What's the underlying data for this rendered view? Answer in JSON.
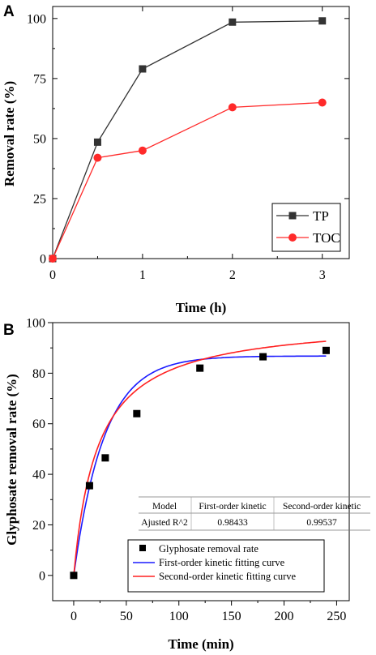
{
  "panels": {
    "a": {
      "label": "A"
    },
    "b": {
      "label": "B"
    }
  },
  "chart_data": [
    {
      "id": "A",
      "type": "line",
      "xlabel": "Time (h)",
      "ylabel": "Removal rate (%)",
      "xlim": [
        0,
        3.3
      ],
      "ylim": [
        0,
        105
      ],
      "xticks": [
        0,
        1,
        2,
        3
      ],
      "yticks": [
        0,
        25,
        50,
        75,
        100
      ],
      "legend_position": "bottom-right",
      "series": [
        {
          "name": "TP",
          "color": "#333333",
          "marker": "square",
          "x": [
            0,
            0.5,
            1,
            2,
            3
          ],
          "y": [
            0,
            48.5,
            79,
            98.5,
            99
          ]
        },
        {
          "name": "TOC",
          "color": "#ff2a2a",
          "marker": "circle",
          "x": [
            0,
            0.5,
            1,
            2,
            3
          ],
          "y": [
            0,
            42,
            45,
            63,
            65
          ]
        }
      ]
    },
    {
      "id": "B",
      "type": "scatter",
      "xlabel": "Time (min)",
      "ylabel": "Glyphosate removal rate (%)",
      "xlim": [
        -20,
        262
      ],
      "ylim": [
        -10,
        100
      ],
      "xticks": [
        0,
        50,
        100,
        150,
        200,
        250
      ],
      "yticks": [
        0,
        20,
        40,
        60,
        80,
        100
      ],
      "legend_position": "bottom-right",
      "series": [
        {
          "name": "Glyphosate removal rate",
          "color": "#000000",
          "marker": "square",
          "x": [
            0,
            15,
            30,
            60,
            120,
            180,
            240
          ],
          "y": [
            0,
            35.5,
            46.5,
            64,
            82,
            86.5,
            89
          ]
        },
        {
          "name": "First-order kinetic fitting curve",
          "color": "#1a1aff",
          "kind": "curve",
          "model": "first-order",
          "qe": 86.8,
          "k1": 0.0344
        },
        {
          "name": "Second-order kinetic fitting curve",
          "color": "#ff2020",
          "kind": "curve",
          "model": "second-order",
          "qe": 101.5,
          "k2": 0.000429
        }
      ],
      "fit_table": {
        "headers": [
          "Model",
          "First-order kinetic",
          "Second-order kinetic"
        ],
        "rows": [
          [
            "Ajusted R^2",
            "0.98433",
            "0.99537"
          ]
        ]
      }
    }
  ]
}
